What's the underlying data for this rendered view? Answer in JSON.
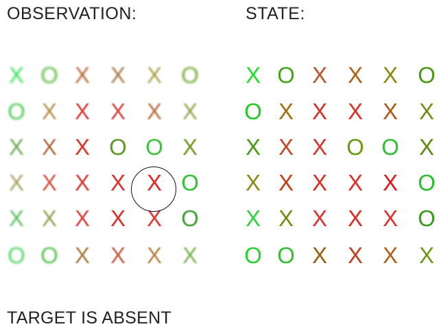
{
  "observation": {
    "heading": "OBSERVATION:",
    "rows": [
      [
        {
          "s": "X",
          "c": "#35e055",
          "b": 1.6
        },
        {
          "s": "O",
          "c": "#59b93c",
          "b": 1.8
        },
        {
          "s": "X",
          "c": "#b66a3a",
          "b": 1.2
        },
        {
          "s": "X",
          "c": "#a77845",
          "b": 1.2
        },
        {
          "s": "X",
          "c": "#a8a14a",
          "b": 1.3
        },
        {
          "s": "O",
          "c": "#6ea72c",
          "b": 1.5
        }
      ],
      [
        {
          "s": "O",
          "c": "#45c94b",
          "b": 1.6
        },
        {
          "s": "X",
          "c": "#b18e45",
          "b": 1.1
        },
        {
          "s": "X",
          "c": "#df3f3a",
          "b": 0.6
        },
        {
          "s": "X",
          "c": "#df3f3a",
          "b": 0.8
        },
        {
          "s": "X",
          "c": "#b7663b",
          "b": 1.0
        },
        {
          "s": "X",
          "c": "#96a049",
          "b": 1.2
        }
      ],
      [
        {
          "s": "X",
          "c": "#6aa84d",
          "b": 1.3
        },
        {
          "s": "X",
          "c": "#b16a3c",
          "b": 0.9
        },
        {
          "s": "X",
          "c": "#d9362c",
          "b": 0.3
        },
        {
          "s": "O",
          "c": "#5f9a27",
          "b": 0
        },
        {
          "s": "O",
          "c": "#3fc43f",
          "b": 0
        },
        {
          "s": "X",
          "c": "#6e9a1e",
          "b": 0.4
        }
      ],
      [
        {
          "s": "X",
          "c": "#a4a060",
          "b": 1.3
        },
        {
          "s": "X",
          "c": "#d9553f",
          "b": 0.9
        },
        {
          "s": "X",
          "c": "#d83a30",
          "b": 0.4
        },
        {
          "s": "X",
          "c": "#e03030",
          "b": 0
        },
        {
          "s": "X",
          "c": "#e02a28",
          "b": 0
        },
        {
          "s": "O",
          "c": "#32c432",
          "b": 0
        }
      ],
      [
        {
          "s": "X",
          "c": "#55c060",
          "b": 1.4
        },
        {
          "s": "X",
          "c": "#94a04c",
          "b": 1.0
        },
        {
          "s": "X",
          "c": "#e0403a",
          "b": 0.5
        },
        {
          "s": "X",
          "c": "#e0302e",
          "b": 0.2
        },
        {
          "s": "X",
          "c": "#e03a34",
          "b": 0.2
        },
        {
          "s": "O",
          "c": "#3a9c2c",
          "b": 0.4
        }
      ],
      [
        {
          "s": "O",
          "c": "#4ad15a",
          "b": 1.6
        },
        {
          "s": "O",
          "c": "#52c04e",
          "b": 1.3
        },
        {
          "s": "X",
          "c": "#a67c3c",
          "b": 0.8
        },
        {
          "s": "X",
          "c": "#c65a44",
          "b": 0.8
        },
        {
          "s": "X",
          "c": "#b4803e",
          "b": 0.9
        },
        {
          "s": "X",
          "c": "#7bb04a",
          "b": 1.1
        }
      ]
    ]
  },
  "state": {
    "heading": "STATE:",
    "rows": [
      [
        {
          "s": "X",
          "c": "#1fe02f"
        },
        {
          "s": "O",
          "c": "#45a51d"
        },
        {
          "s": "X",
          "c": "#c05028"
        },
        {
          "s": "X",
          "c": "#b06018"
        },
        {
          "s": "X",
          "c": "#8a8a10"
        },
        {
          "s": "O",
          "c": "#4a9a15"
        }
      ],
      [
        {
          "s": "O",
          "c": "#22c825"
        },
        {
          "s": "X",
          "c": "#a0700e"
        },
        {
          "s": "X",
          "c": "#e02a22"
        },
        {
          "s": "X",
          "c": "#e0302a"
        },
        {
          "s": "X",
          "c": "#b05818"
        },
        {
          "s": "X",
          "c": "#7a8a15"
        }
      ],
      [
        {
          "s": "X",
          "c": "#4a9a18"
        },
        {
          "s": "X",
          "c": "#c04a25"
        },
        {
          "s": "X",
          "c": "#e0302a"
        },
        {
          "s": "O",
          "c": "#6a9a12"
        },
        {
          "s": "O",
          "c": "#30c030"
        },
        {
          "s": "X",
          "c": "#5a8a10"
        }
      ],
      [
        {
          "s": "X",
          "c": "#8a8a18"
        },
        {
          "s": "X",
          "c": "#c04018"
        },
        {
          "s": "X",
          "c": "#e02a22"
        },
        {
          "s": "X",
          "c": "#e0302a"
        },
        {
          "s": "X",
          "c": "#e01818"
        },
        {
          "s": "O",
          "c": "#28c028"
        }
      ],
      [
        {
          "s": "X",
          "c": "#30d040"
        },
        {
          "s": "X",
          "c": "#7a8a15"
        },
        {
          "s": "X",
          "c": "#e0302a"
        },
        {
          "s": "X",
          "c": "#e02a22"
        },
        {
          "s": "X",
          "c": "#e0302a"
        },
        {
          "s": "O",
          "c": "#3a9a1a"
        }
      ],
      [
        {
          "s": "O",
          "c": "#28d030"
        },
        {
          "s": "O",
          "c": "#30c030"
        },
        {
          "s": "X",
          "c": "#9a6010"
        },
        {
          "s": "X",
          "c": "#c04020"
        },
        {
          "s": "X",
          "c": "#b06018"
        },
        {
          "s": "X",
          "c": "#6a9a18"
        }
      ]
    ]
  },
  "footer": {
    "status": "TARGET IS ABSENT"
  },
  "fixation": {
    "row": 3,
    "col": 4
  }
}
